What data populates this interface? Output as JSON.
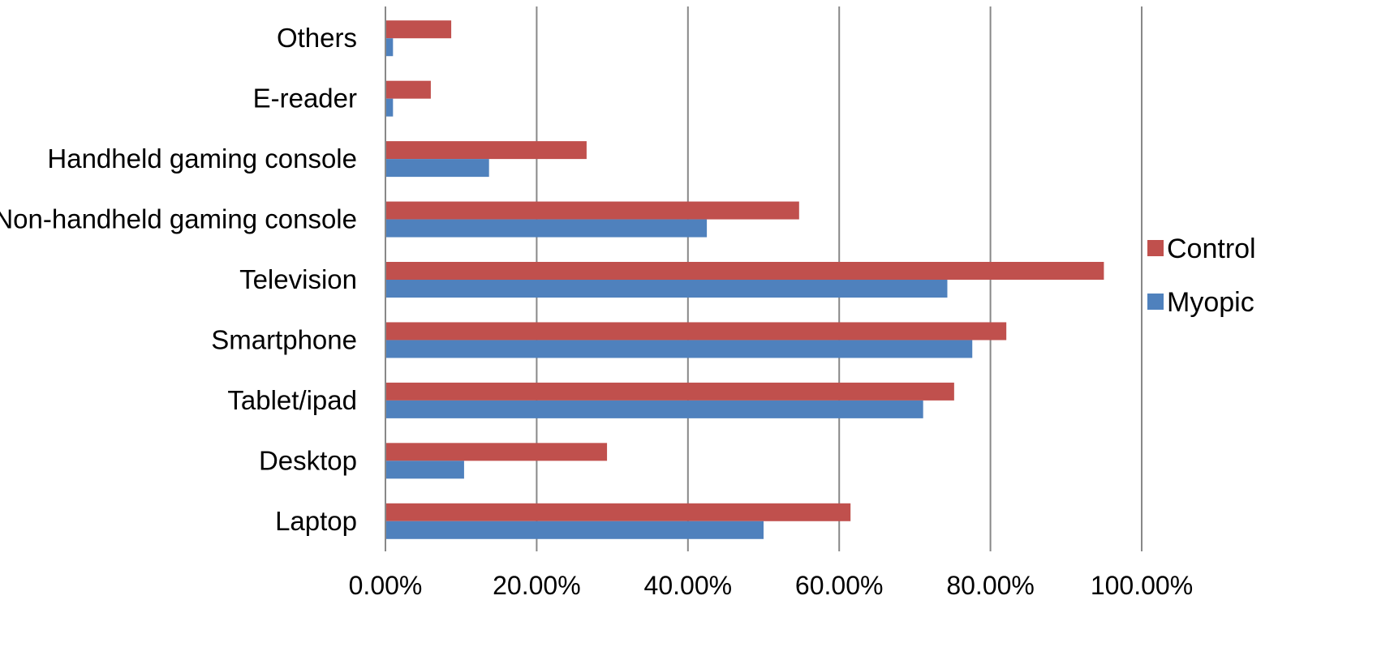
{
  "chart_data": {
    "type": "bar",
    "orientation": "horizontal",
    "categories": [
      "Laptop",
      "Desktop",
      "Tablet/ipad",
      "Smartphone",
      "Television",
      "Non-handheld gaming console",
      "Handheld gaming console",
      "E-reader",
      "Others"
    ],
    "series": [
      {
        "name": "Control",
        "color": "#c0504d",
        "values": [
          61.5,
          29.3,
          75.2,
          82.1,
          95.0,
          54.7,
          26.6,
          6.0,
          8.7
        ]
      },
      {
        "name": "Myopic",
        "color": "#4f81bd",
        "values": [
          50.0,
          10.4,
          71.1,
          77.6,
          74.3,
          42.5,
          13.7,
          1.0,
          1.0
        ]
      }
    ],
    "xlim": [
      0,
      100
    ],
    "xticks": [
      0,
      20,
      40,
      60,
      80,
      100
    ],
    "xtick_labels": [
      "0.00%",
      "20.00%",
      "40.00%",
      "60.00%",
      "80.00%",
      "100.00%"
    ],
    "grid": true,
    "legend_position": "right"
  }
}
